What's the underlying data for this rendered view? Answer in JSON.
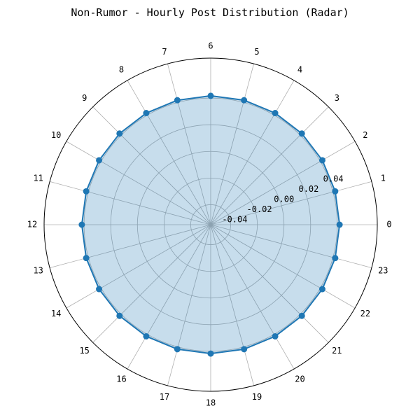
{
  "chart_data": {
    "type": "radar",
    "title": "Non-Rumor - Hourly Post Distribution (Radar)",
    "categories": [
      "0",
      "1",
      "2",
      "3",
      "4",
      "5",
      "6",
      "7",
      "8",
      "9",
      "10",
      "11",
      "12",
      "13",
      "14",
      "15",
      "16",
      "17",
      "18",
      "19",
      "20",
      "21",
      "22",
      "23"
    ],
    "radial_ticks": [
      "-0.04",
      "-0.02",
      "0.00",
      "0.02",
      "0.04"
    ],
    "rlim": [
      -0.055,
      0.07
    ],
    "series": [
      {
        "values": [
          0.0417,
          0.0417,
          0.0417,
          0.0417,
          0.0417,
          0.0417,
          0.0417,
          0.0417,
          0.0417,
          0.0417,
          0.0417,
          0.0417,
          0.0417,
          0.0417,
          0.0417,
          0.0417,
          0.0417,
          0.0417,
          0.0417,
          0.0417,
          0.0417,
          0.0417,
          0.0417,
          0.0417
        ],
        "color": "#1f77b4",
        "fill_color": "#1f77b4",
        "fill_opacity": 0.25
      }
    ],
    "angular_direction": "counterclockwise",
    "zero_location": "east",
    "grid": true,
    "grid_color": "#b0b0b0"
  }
}
